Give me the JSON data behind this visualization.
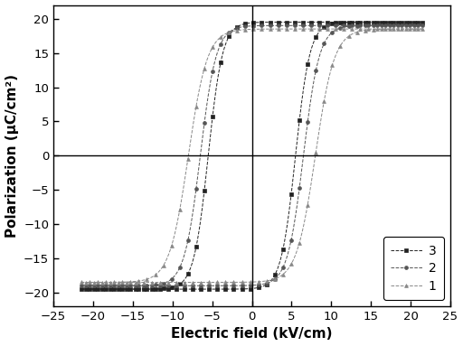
{
  "title": "",
  "xlabel": "Electric field (kV/cm)",
  "ylabel": "Polarization (μC/cm²)",
  "xlim": [
    -25,
    25
  ],
  "ylim": [
    -22,
    22
  ],
  "xticks": [
    -25,
    -20,
    -15,
    -10,
    -5,
    0,
    5,
    10,
    15,
    20,
    25
  ],
  "yticks": [
    -20,
    -15,
    -10,
    -5,
    0,
    5,
    10,
    15,
    20
  ],
  "background_color": "#ffffff",
  "curves": [
    {
      "label": "3",
      "color": "#222222",
      "marker": "s",
      "markersize": 2.8,
      "linewidth": 0.7,
      "Ec": 5.5,
      "Pr": 14.0,
      "Pmax": 19.5,
      "Emax": 21.5,
      "steepness": 0.55
    },
    {
      "label": "2",
      "color": "#555555",
      "marker": "o",
      "markersize": 2.8,
      "linewidth": 0.7,
      "Ec": 6.5,
      "Pr": 13.0,
      "Pmax": 19.0,
      "Emax": 21.5,
      "steepness": 0.5
    },
    {
      "label": "1",
      "color": "#888888",
      "marker": "^",
      "markersize": 2.8,
      "linewidth": 0.7,
      "Ec": 8.0,
      "Pr": 10.0,
      "Pmax": 18.5,
      "Emax": 21.5,
      "steepness": 0.42
    }
  ],
  "n_points": 500,
  "markevery": 12
}
